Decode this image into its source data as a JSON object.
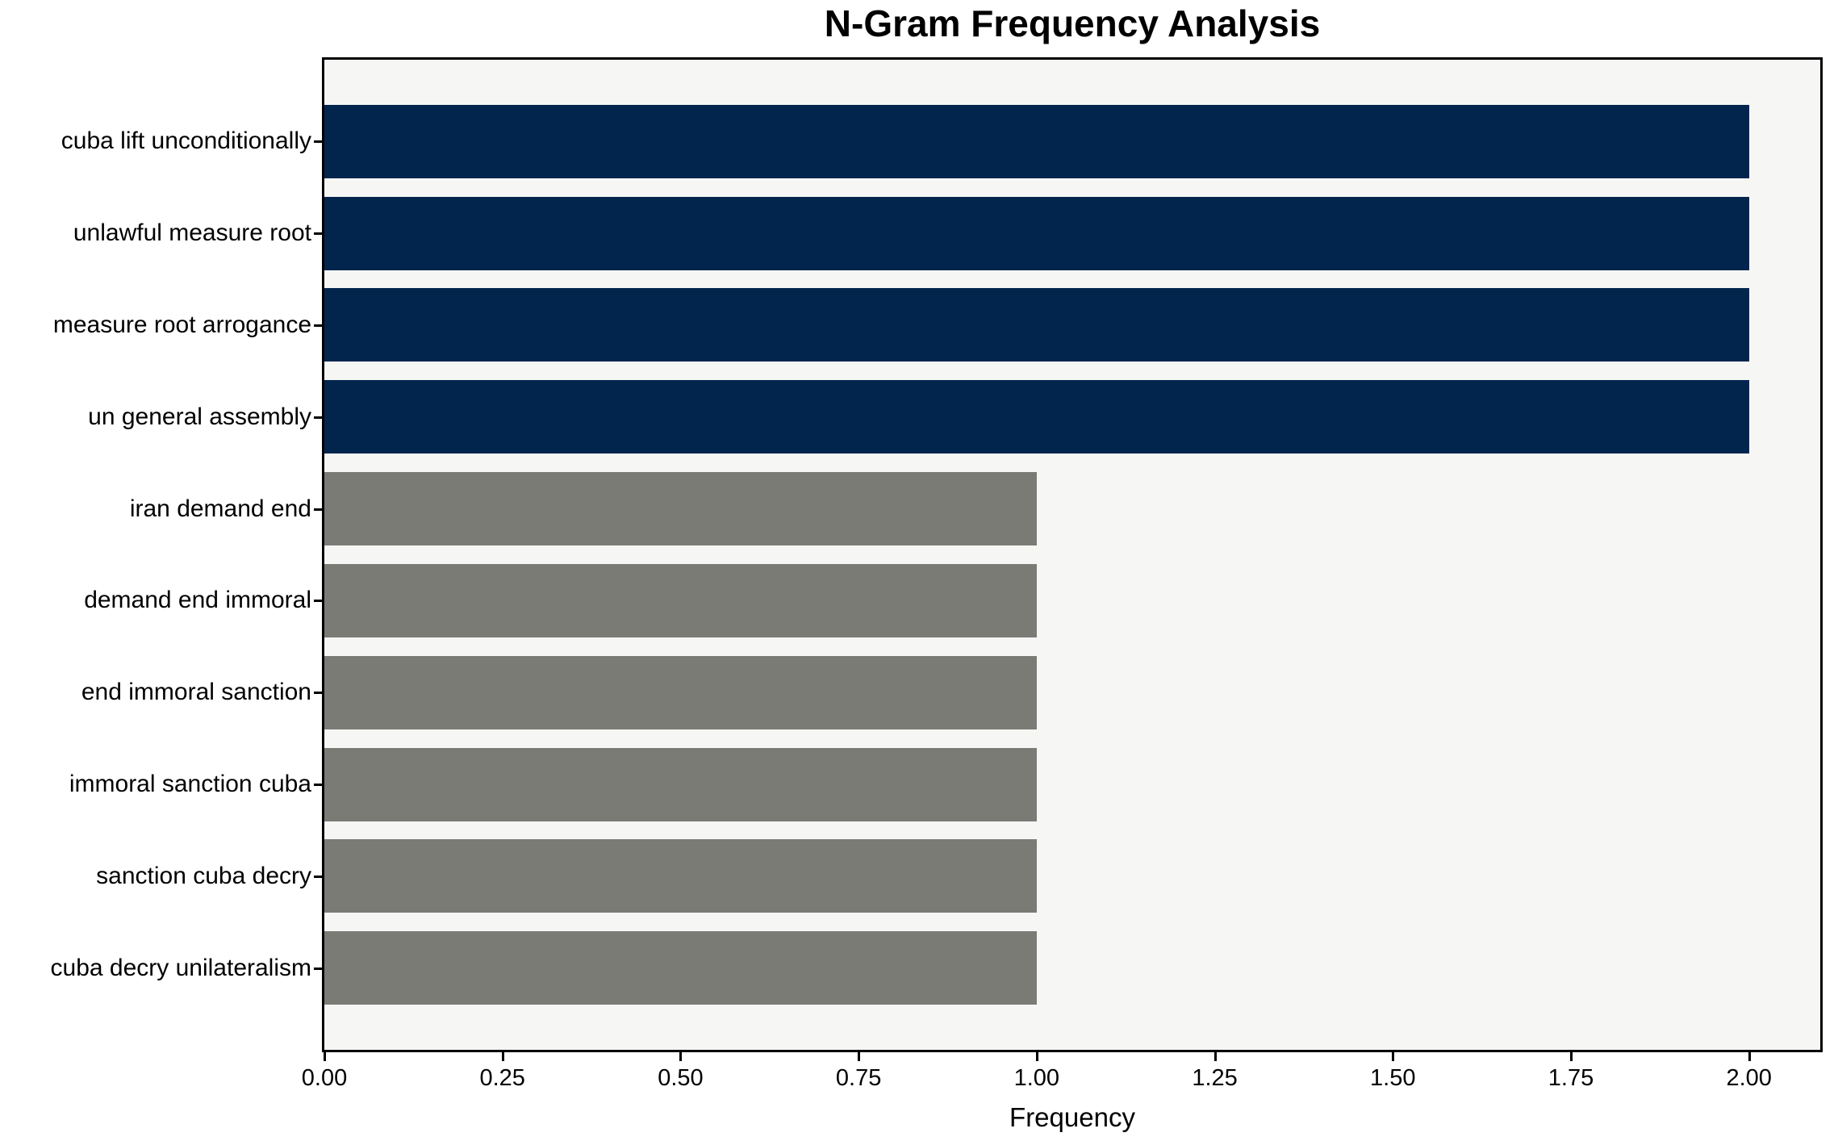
{
  "figure": {
    "background": "#ffffff",
    "plot_background": "#f6f6f4",
    "spine_color": "#000000"
  },
  "chart_data": {
    "type": "bar",
    "orientation": "horizontal",
    "title": "N-Gram Frequency Analysis",
    "xlabel": "Frequency",
    "ylabel": "",
    "categories": [
      "cuba lift unconditionally",
      "unlawful measure root",
      "measure root arrogance",
      "un general assembly",
      "iran demand end",
      "demand end immoral",
      "end immoral sanction",
      "immoral sanction cuba",
      "sanction cuba decry",
      "cuba decry unilateralism"
    ],
    "values": [
      2,
      2,
      2,
      2,
      1,
      1,
      1,
      1,
      1,
      1
    ],
    "bar_colors": [
      "#02254e",
      "#02254e",
      "#02254e",
      "#02254e",
      "#7b7b76",
      "#7b7b76",
      "#7b7b76",
      "#7b7b76",
      "#7b7b76",
      "#7b7b76"
    ],
    "xlim": [
      0,
      2.1
    ],
    "xticks": [
      0,
      0.25,
      0.5,
      0.75,
      1.0,
      1.25,
      1.5,
      1.75,
      2.0
    ],
    "xtick_labels": [
      "0.00",
      "0.25",
      "0.50",
      "0.75",
      "1.00",
      "1.25",
      "1.50",
      "1.75",
      "2.00"
    ],
    "grid": false,
    "legend": "none"
  }
}
